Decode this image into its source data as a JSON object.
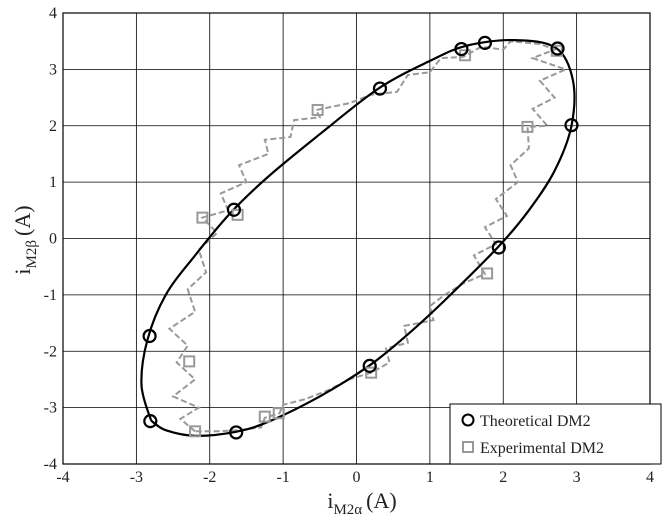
{
  "chart_data": {
    "type": "scatter",
    "title": "",
    "xlabel": {
      "main": "i",
      "sub": "M2α",
      "unit": "(A)"
    },
    "ylabel": {
      "main": "i",
      "sub": "M2β",
      "unit": "(A)"
    },
    "xlim": [
      -4,
      4
    ],
    "ylim": [
      -4,
      4
    ],
    "xticks": [
      "-4",
      "-3",
      "-2",
      "-1",
      "0",
      "1",
      "2",
      "3",
      "4"
    ],
    "yticks": [
      "-4",
      "-3",
      "-2",
      "-1",
      "0",
      "1",
      "2",
      "3",
      "4"
    ],
    "grid": true,
    "legend": "bottom-right",
    "series": [
      {
        "name": "Theoretical DM2",
        "style": "solid-line-circle-markers",
        "color": "#000000",
        "curve": [
          [
            -2.8,
            -3.23
          ],
          [
            -2.93,
            -2.6
          ],
          [
            -2.85,
            -1.8
          ],
          [
            -2.6,
            -1.0
          ],
          [
            -2.2,
            -0.3
          ],
          [
            -1.72,
            0.45
          ],
          [
            -1.2,
            1.1
          ],
          [
            -0.5,
            1.85
          ],
          [
            0.3,
            2.66
          ],
          [
            1.0,
            3.15
          ],
          [
            1.5,
            3.42
          ],
          [
            2.15,
            3.52
          ],
          [
            2.72,
            3.38
          ],
          [
            2.95,
            2.8
          ],
          [
            2.93,
            2.0
          ],
          [
            2.7,
            1.2
          ],
          [
            2.35,
            0.5
          ],
          [
            1.93,
            -0.15
          ],
          [
            1.2,
            -1.1
          ],
          [
            0.7,
            -1.7
          ],
          [
            0.18,
            -2.25
          ],
          [
            -0.5,
            -2.8
          ],
          [
            -1.2,
            -3.25
          ],
          [
            -1.65,
            -3.43
          ],
          [
            -2.2,
            -3.5
          ],
          [
            -2.6,
            -3.4
          ],
          [
            -2.8,
            -3.23
          ]
        ],
        "points": [
          [
            1.43,
            3.36
          ],
          [
            1.75,
            3.47
          ],
          [
            2.74,
            3.37
          ],
          [
            0.32,
            2.66
          ],
          [
            2.93,
            2.01
          ],
          [
            -1.67,
            0.51
          ],
          [
            1.94,
            -0.16
          ],
          [
            -2.82,
            -1.73
          ],
          [
            0.18,
            -2.26
          ],
          [
            -2.81,
            -3.24
          ],
          [
            -1.64,
            -3.44
          ]
        ]
      },
      {
        "name": "Experimental DM2",
        "style": "dashed-line-square-markers",
        "color": "#999999",
        "curve": [
          [
            -2.2,
            -3.42
          ],
          [
            -2.4,
            -3.2
          ],
          [
            -2.15,
            -3.0
          ],
          [
            -2.5,
            -2.8
          ],
          [
            -2.2,
            -2.5
          ],
          [
            -2.45,
            -2.2
          ],
          [
            -2.3,
            -1.9
          ],
          [
            -2.55,
            -1.6
          ],
          [
            -2.2,
            -1.3
          ],
          [
            -2.3,
            -0.9
          ],
          [
            -2.05,
            -0.6
          ],
          [
            -2.15,
            -0.2
          ],
          [
            -1.9,
            0.1
          ],
          [
            -2.1,
            0.37
          ],
          [
            -1.75,
            0.5
          ],
          [
            -1.85,
            0.8
          ],
          [
            -1.5,
            1.0
          ],
          [
            -1.6,
            1.3
          ],
          [
            -1.2,
            1.5
          ],
          [
            -1.25,
            1.75
          ],
          [
            -0.9,
            1.8
          ],
          [
            -0.85,
            2.1
          ],
          [
            -0.5,
            2.15
          ],
          [
            -0.55,
            2.28
          ],
          [
            -0.1,
            2.4
          ],
          [
            0.2,
            2.55
          ],
          [
            0.55,
            2.6
          ],
          [
            0.7,
            2.9
          ],
          [
            1.0,
            2.95
          ],
          [
            1.15,
            3.2
          ],
          [
            1.45,
            3.22
          ],
          [
            1.7,
            3.4
          ],
          [
            2.0,
            3.35
          ],
          [
            2.1,
            3.5
          ],
          [
            2.5,
            3.45
          ],
          [
            2.7,
            3.35
          ],
          [
            2.4,
            3.2
          ],
          [
            2.85,
            3.0
          ],
          [
            2.5,
            2.8
          ],
          [
            2.7,
            2.5
          ],
          [
            2.4,
            2.3
          ],
          [
            2.6,
            2.0
          ],
          [
            2.33,
            1.98
          ],
          [
            2.35,
            1.6
          ],
          [
            2.1,
            1.3
          ],
          [
            2.2,
            1.0
          ],
          [
            1.9,
            0.7
          ],
          [
            2.05,
            0.4
          ],
          [
            1.75,
            0.2
          ],
          [
            1.9,
            -0.1
          ],
          [
            1.6,
            -0.3
          ],
          [
            1.75,
            -0.63
          ],
          [
            1.45,
            -0.8
          ],
          [
            1.2,
            -1.0
          ],
          [
            1.0,
            -1.2
          ],
          [
            1.05,
            -1.45
          ],
          [
            0.65,
            -1.55
          ],
          [
            0.7,
            -1.85
          ],
          [
            0.4,
            -1.95
          ],
          [
            0.45,
            -2.2
          ],
          [
            0.2,
            -2.38
          ],
          [
            -0.1,
            -2.5
          ],
          [
            -0.4,
            -2.7
          ],
          [
            -0.7,
            -2.85
          ],
          [
            -1.0,
            -2.95
          ],
          [
            -1.05,
            -3.1
          ],
          [
            -1.25,
            -3.18
          ],
          [
            -1.3,
            -3.35
          ],
          [
            -1.6,
            -3.4
          ],
          [
            -1.9,
            -3.42
          ],
          [
            -2.2,
            -3.42
          ]
        ],
        "points": [
          [
            1.48,
            3.25
          ],
          [
            2.73,
            3.33
          ],
          [
            -0.53,
            2.28
          ],
          [
            2.33,
            1.98
          ],
          [
            -2.1,
            0.37
          ],
          [
            -1.62,
            0.42
          ],
          [
            1.78,
            -0.62
          ],
          [
            -2.28,
            -2.18
          ],
          [
            0.2,
            -2.38
          ],
          [
            -1.25,
            -3.16
          ],
          [
            -1.06,
            -3.1
          ],
          [
            -2.2,
            -3.42
          ]
        ]
      }
    ]
  }
}
